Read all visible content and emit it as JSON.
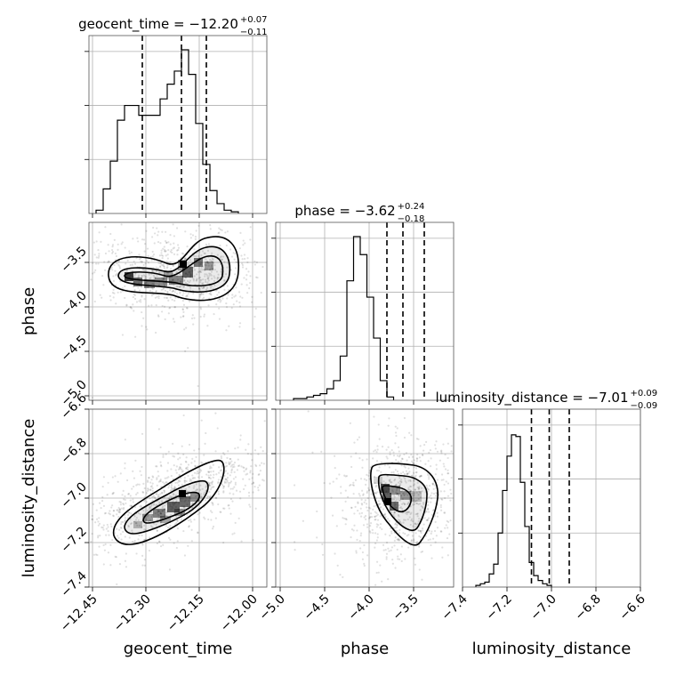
{
  "chart_data": {
    "type": "corner",
    "parameters": [
      {
        "name": "geocent_time",
        "label": "geocent_time",
        "range": [
          -12.46,
          -11.96
        ],
        "ticks": [
          -12.45,
          -12.3,
          -12.15,
          -12.0
        ],
        "tick_labels": [
          "−12.45",
          "−12.30",
          "−12.15",
          "−12.00"
        ]
      },
      {
        "name": "phase",
        "label": "phase",
        "range": [
          -5.05,
          -3.05
        ],
        "ticks": [
          -5.0,
          -4.5,
          -4.0,
          -3.5
        ],
        "tick_labels": [
          "−5.0",
          "−4.5",
          "−4.0",
          "−3.5"
        ],
        "ytick_labels": [
          "−5.0",
          "−4.5",
          "−4.0",
          "−3.5"
        ]
      },
      {
        "name": "luminosity_distance",
        "label": "luminosity_distance",
        "range": [
          -7.4,
          -6.6
        ],
        "ticks": [
          -7.4,
          -7.2,
          -7.0,
          -6.8,
          -6.6
        ],
        "tick_labels": [
          "−7.4",
          "−7.2",
          "−7.0",
          "−6.8",
          "−6.6"
        ]
      }
    ],
    "titles": [
      {
        "param": "geocent_time",
        "prefix": "geocent_time = −12.20",
        "plus": "+0.07",
        "minus": "−0.11"
      },
      {
        "param": "phase",
        "prefix": "phase = −3.62",
        "plus": "+0.24",
        "minus": "−0.18"
      },
      {
        "param": "luminosity_distance",
        "prefix": "luminosity_distance = −7.01",
        "plus": "+0.09",
        "minus": "−0.09"
      }
    ],
    "histograms": [
      {
        "param": "geocent_time",
        "bin_edges_start": -12.44,
        "bin_width": 0.02,
        "counts": [
          0.02,
          0.15,
          0.32,
          0.57,
          0.66,
          0.66,
          0.6,
          0.6,
          0.6,
          0.7,
          0.79,
          0.87,
          1.0,
          0.85,
          0.55,
          0.3,
          0.14,
          0.06,
          0.02,
          0.01
        ],
        "quantiles": [
          -12.31,
          -12.2,
          -12.13
        ]
      },
      {
        "param": "phase",
        "bin_edges_start": -4.85,
        "bin_width": 0.075,
        "counts": [
          0.01,
          0.01,
          0.02,
          0.03,
          0.04,
          0.07,
          0.12,
          0.27,
          0.73,
          1.0,
          0.89,
          0.63,
          0.38,
          0.12,
          0.02
        ],
        "quantiles": [
          -3.8,
          -3.62,
          -3.38
        ]
      },
      {
        "param": "luminosity_distance",
        "bin_edges_start": -7.34,
        "bin_width": 0.02,
        "counts": [
          0.01,
          0.02,
          0.03,
          0.08,
          0.14,
          0.33,
          0.59,
          0.8,
          0.93,
          0.92,
          0.64,
          0.37,
          0.15,
          0.07,
          0.04,
          0.02,
          0.01
        ],
        "quantiles": [
          -7.09,
          -7.01,
          -6.92
        ]
      }
    ],
    "density_2d": [
      {
        "x": "geocent_time",
        "y": "phase",
        "mode": [
          -12.16,
          -3.58
        ]
      },
      {
        "x": "geocent_time",
        "y": "luminosity_distance",
        "mode": [
          -12.17,
          -6.98
        ]
      },
      {
        "x": "phase",
        "y": "luminosity_distance",
        "mode": [
          -3.8,
          -7.06
        ]
      }
    ],
    "grid": true
  }
}
